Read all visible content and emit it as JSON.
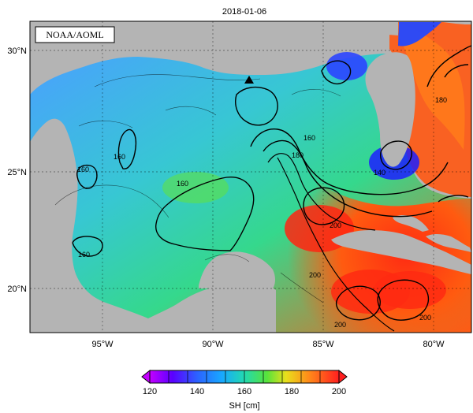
{
  "map": {
    "title": "2018-01-06",
    "source_label": "NOAA/AOML",
    "variable_label": "SH [cm]",
    "lat_ticks": [
      "30°N",
      "25°N",
      "20°N"
    ],
    "lon_ticks": [
      "95°W",
      "90°W",
      "85°W",
      "80°W"
    ],
    "colorbar_ticks": [
      "120",
      "140",
      "160",
      "180",
      "200"
    ],
    "contour_labels": [
      "160",
      "160",
      "160",
      "160",
      "180",
      "160",
      "180",
      "140",
      "200",
      "200",
      "200",
      "200"
    ],
    "colors": {
      "land": "#b4b4b4",
      "low": "#8f00ff",
      "mid_low": "#2f6cff",
      "mid": "#2ad37d",
      "high": "#ff2a1f",
      "extreme": "#7a0000"
    },
    "marker": "triangle-marker"
  }
}
